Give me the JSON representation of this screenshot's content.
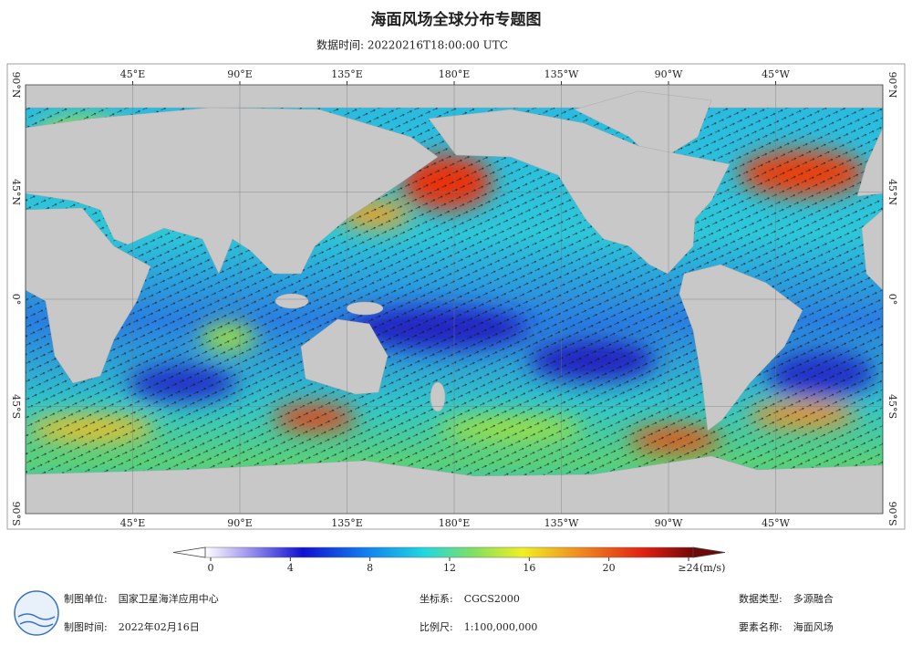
{
  "header": {
    "title": "海面风场全球分布专题图",
    "subtitle": "数据时间: 20220216T18:00:00 UTC"
  },
  "map": {
    "lonlim": [
      0,
      360
    ],
    "latlim": [
      -90,
      90
    ],
    "lon_ticks": [
      {
        "value": 45,
        "label": "45°E"
      },
      {
        "value": 90,
        "label": "90°E"
      },
      {
        "value": 135,
        "label": "135°E"
      },
      {
        "value": 180,
        "label": "180°E"
      },
      {
        "value": 225,
        "label": "135°W"
      },
      {
        "value": 270,
        "label": "90°W"
      },
      {
        "value": 315,
        "label": "45°W"
      }
    ],
    "lat_ticks": [
      {
        "value": 90,
        "label": "90°N"
      },
      {
        "value": 45,
        "label": "45°N"
      },
      {
        "value": 0,
        "label": "0°"
      },
      {
        "value": -45,
        "label": "45°S"
      },
      {
        "value": -90,
        "label": "90°S"
      }
    ]
  },
  "colorbar": {
    "range": [
      0,
      24
    ],
    "ticks": [
      0,
      4,
      8,
      12,
      16,
      20,
      {
        "value": 24,
        "label": "≥24"
      }
    ],
    "unit": "(m/s)"
  },
  "footer": [
    {
      "label": "制图单位:",
      "value": "国家卫星海洋应用中心"
    },
    {
      "label": "坐标系:",
      "value": "CGCS2000"
    },
    {
      "label": "数据类型:",
      "value": "多源融合"
    },
    {
      "label": "制图时间:",
      "value": "2022年02月16日"
    },
    {
      "label": "比例尺:",
      "value": "1:100,000,000"
    },
    {
      "label": "要素名称:",
      "value": "海面风场"
    }
  ]
}
